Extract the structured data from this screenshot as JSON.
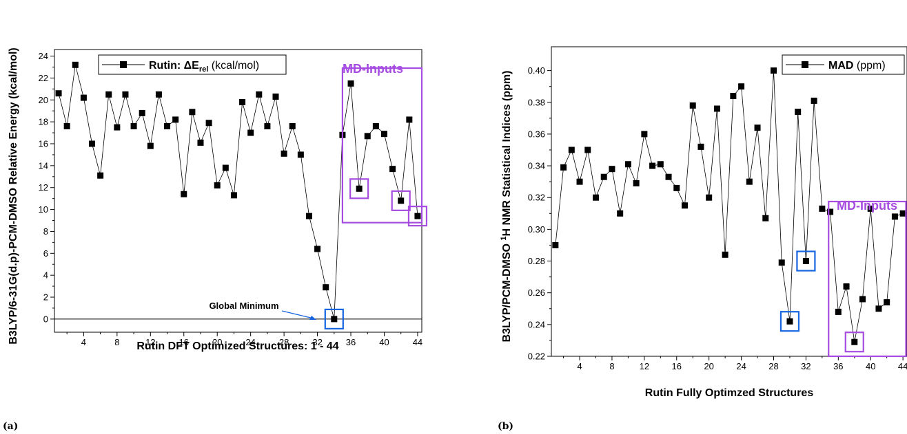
{
  "colors": {
    "purple": "#a64ce0",
    "blue": "#1565e0",
    "ink": "#000000"
  },
  "chart_data": [
    {
      "type": "line",
      "panel_label": "(a)",
      "xlabel": "Rutin DFT Optimized Structures: 1 - 44",
      "ylabel": "B3LYP/6-31G(d.p)-PCM-DMSO Relative Energy (kcal/mol)",
      "legend_prefix": "Rutin: ΔE",
      "legend_sub": "rel",
      "legend_suffix": " (kcal/mol)",
      "legend_position": "top-left",
      "xlim": [
        0.5,
        44.5
      ],
      "ylim": [
        -1.2,
        24.6
      ],
      "xticks": [
        4,
        8,
        12,
        16,
        20,
        24,
        28,
        32,
        36,
        40,
        44
      ],
      "yticks": [
        0,
        2,
        4,
        6,
        8,
        10,
        12,
        14,
        16,
        18,
        20,
        22,
        24
      ],
      "zero_line": true,
      "x": [
        1,
        2,
        3,
        4,
        5,
        6,
        7,
        8,
        9,
        10,
        11,
        12,
        13,
        14,
        15,
        16,
        17,
        18,
        19,
        20,
        21,
        22,
        23,
        24,
        25,
        26,
        27,
        28,
        29,
        30,
        31,
        32,
        33,
        34,
        35,
        36,
        37,
        38,
        39,
        40,
        41,
        42,
        43,
        44
      ],
      "y": [
        20.6,
        17.6,
        23.2,
        20.2,
        16.0,
        13.1,
        20.5,
        17.5,
        20.5,
        17.6,
        18.8,
        15.8,
        20.5,
        17.6,
        18.2,
        11.4,
        18.9,
        16.1,
        17.9,
        12.2,
        13.8,
        11.3,
        19.8,
        17.0,
        20.5,
        17.6,
        20.3,
        15.1,
        17.6,
        15.0,
        9.4,
        6.4,
        2.9,
        0.0,
        16.8,
        21.5,
        11.9,
        16.7,
        17.6,
        16.9,
        13.7,
        10.8,
        18.2,
        9.4
      ],
      "md_label": "MD-Inputs",
      "md_box": {
        "x": [
          35,
          44.5
        ],
        "y": [
          8.8,
          22.9
        ]
      },
      "purple_boxes": [
        37,
        42,
        44
      ],
      "blue_boxes": [
        34
      ],
      "annotation": {
        "text": "Global Minimum",
        "target_x": 34,
        "target_y": 0.0
      }
    },
    {
      "type": "line",
      "panel_label": "(b)",
      "xlabel": "Rutin Fully Optimzed Structures",
      "ylabel_prefix": "B3LYP/PCM-DMSO ",
      "ylabel_sup": "1",
      "ylabel_suffix": "H NMR Statistical Indices (ppm)",
      "legend_bold": "MAD",
      "legend_suffix": " (ppm)",
      "legend_position": "top-right",
      "xlim": [
        0.5,
        44.5
      ],
      "ylim": [
        0.22,
        0.415
      ],
      "xticks": [
        4,
        8,
        12,
        16,
        20,
        24,
        28,
        32,
        36,
        40,
        44
      ],
      "yticks": [
        0.22,
        0.24,
        0.26,
        0.28,
        0.3,
        0.32,
        0.34,
        0.36,
        0.38,
        0.4
      ],
      "x": [
        1,
        2,
        3,
        4,
        5,
        6,
        7,
        8,
        9,
        10,
        11,
        12,
        13,
        14,
        15,
        16,
        17,
        18,
        19,
        20,
        21,
        22,
        23,
        24,
        25,
        26,
        27,
        28,
        29,
        30,
        31,
        32,
        33,
        34,
        35,
        36,
        37,
        38,
        39,
        40,
        41,
        42,
        43,
        44
      ],
      "y": [
        0.29,
        0.339,
        0.35,
        0.33,
        0.35,
        0.32,
        0.333,
        0.338,
        0.31,
        0.341,
        0.329,
        0.36,
        0.34,
        0.341,
        0.333,
        0.326,
        0.315,
        0.378,
        0.352,
        0.32,
        0.376,
        0.284,
        0.384,
        0.39,
        0.33,
        0.364,
        0.307,
        0.4,
        0.279,
        0.242,
        0.374,
        0.28,
        0.381,
        0.313,
        0.311,
        0.248,
        0.264,
        0.229,
        0.256,
        0.313,
        0.25,
        0.254,
        0.308,
        0.31
      ],
      "md_label": "MD-Inputs",
      "md_box": {
        "x": [
          34.8,
          44.9
        ],
        "y": [
          0.22,
          0.3175
        ]
      },
      "purple_boxes": [
        38
      ],
      "blue_boxes": [
        30,
        32
      ]
    }
  ]
}
